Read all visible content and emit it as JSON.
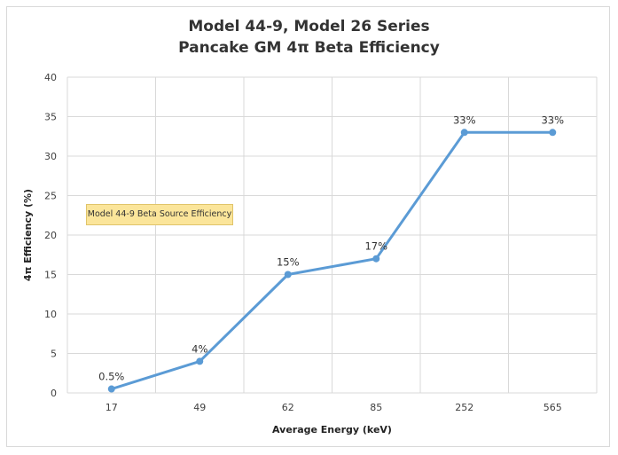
{
  "chart_data": {
    "type": "line",
    "title_line1": "Model 44-9, Model 26 Series",
    "title_line2": "Pancake GM 4π Beta Efficiency",
    "xlabel": "Average Energy (keV)",
    "ylabel": "4π Efficiency (%)",
    "categories": [
      "17",
      "49",
      "62",
      "85",
      "252",
      "565"
    ],
    "values": [
      0.5,
      4,
      15,
      17,
      33,
      33
    ],
    "data_labels": [
      "0.5%",
      "4%",
      "15%",
      "17%",
      "33%",
      "33%"
    ],
    "ylim": [
      0,
      40
    ],
    "yticks": [
      0,
      5,
      10,
      15,
      20,
      25,
      30,
      35,
      40
    ],
    "grid": true,
    "line_color": "#5b9bd5",
    "annotation": "Model 44-9 Beta Source Efficiency"
  }
}
